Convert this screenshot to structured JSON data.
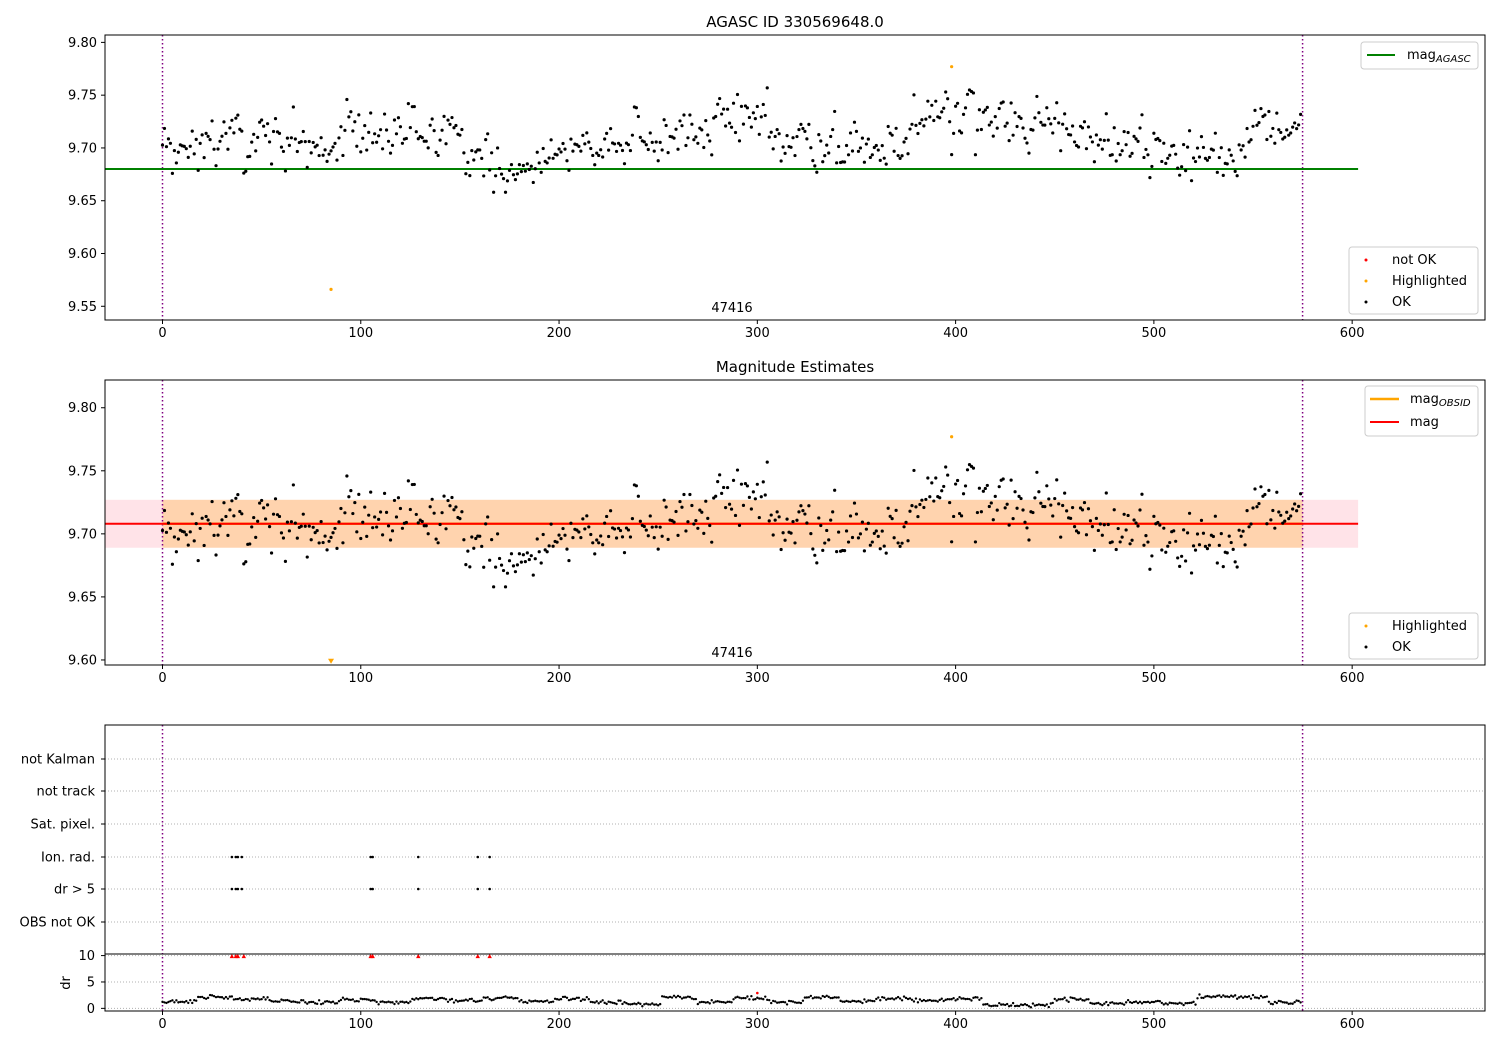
{
  "chart_data": [
    {
      "type": "scatter",
      "title": "AGASC ID 330569648.0",
      "xlim": [
        -29,
        667
      ],
      "ylim": [
        9.537,
        9.807
      ],
      "yticks": [
        "9.80",
        "9.75",
        "9.70",
        "9.65",
        "9.60",
        "9.55"
      ],
      "ytick_values": [
        9.8,
        9.75,
        9.7,
        9.65,
        9.6,
        9.55
      ],
      "xticks": [
        "0",
        "100",
        "200",
        "300",
        "400",
        "500",
        "600"
      ],
      "xtick_values": [
        0,
        100,
        200,
        300,
        400,
        500,
        600
      ],
      "obsid_label": "47416",
      "obsid_bounds": [
        0,
        575
      ],
      "mag_agasc": 9.68,
      "mag_line_range": [
        -29,
        603
      ],
      "series_ok_color": "#000000",
      "highlighted": [
        {
          "x": 85,
          "y": 9.566
        },
        {
          "x": 398,
          "y": 9.777
        }
      ],
      "highlighted_color": "#ffa500",
      "legend_top": {
        "label": "mag",
        "sub": "AGASC",
        "color": "#008000"
      },
      "legend_bottom": [
        {
          "label": "not OK",
          "color": "#ff0000"
        },
        {
          "label": "Highlighted",
          "color": "#ffa500"
        },
        {
          "label": "OK",
          "color": "#000000"
        }
      ]
    },
    {
      "type": "scatter",
      "title": "Magnitude Estimates",
      "xlim": [
        -29,
        667
      ],
      "ylim": [
        9.596,
        9.822
      ],
      "yticks": [
        "9.80",
        "9.75",
        "9.70",
        "9.65",
        "9.60"
      ],
      "ytick_values": [
        9.8,
        9.75,
        9.7,
        9.65,
        9.6
      ],
      "xticks": [
        "0",
        "100",
        "200",
        "300",
        "400",
        "500",
        "600"
      ],
      "xtick_values": [
        0,
        100,
        200,
        300,
        400,
        500,
        600
      ],
      "obsid_label": "47416",
      "obsid_bounds": [
        0,
        575
      ],
      "mag": 9.708,
      "mag_band": [
        9.689,
        9.727
      ],
      "mag_obsid": 9.708,
      "mag_obsid_band": [
        9.689,
        9.727
      ],
      "obsid_band_range": [
        0,
        575
      ],
      "mag_line_range": [
        -29,
        603
      ],
      "highlighted": [
        {
          "x": 398,
          "y": 9.777
        }
      ],
      "offscale_marker": {
        "x": 85,
        "y": 9.599
      },
      "highlighted_color": "#ffa500",
      "mag_color": "#ff0000",
      "mag_obsid_color": "#ffa500",
      "legend_top": [
        {
          "label": "mag",
          "sub": "OBSID",
          "color": "#ffa500"
        },
        {
          "label": "mag",
          "sub": "",
          "color": "#ff0000"
        }
      ],
      "legend_bottom": [
        {
          "label": "Highlighted",
          "color": "#ffa500"
        },
        {
          "label": "OK",
          "color": "#000000"
        }
      ]
    },
    {
      "type": "scatter",
      "title": "",
      "xlim": [
        -29,
        667
      ],
      "flag_rows": [
        "not Kalman",
        "not track",
        "Sat. pixel.",
        "Ion. rad.",
        "dr > 5",
        "OBS not OK"
      ],
      "flag_points": {
        "Ion. rad.": [
          35,
          37,
          38,
          40,
          105,
          106,
          129,
          159,
          165
        ],
        "dr > 5": [
          35,
          37,
          38,
          40,
          105,
          106,
          129,
          159,
          165
        ]
      },
      "dr_ylabel": "dr",
      "dr_yticks": [
        "10",
        "5",
        "0"
      ],
      "dr_ytick_values": [
        10,
        5,
        0
      ],
      "dr_ylim": [
        -0.5,
        10.3
      ],
      "dr_clip_markers": [
        35,
        37,
        38,
        41,
        105,
        106,
        129,
        159,
        165
      ],
      "dr_notok_point": {
        "x": 300,
        "y": 2.9
      },
      "xticks": [
        "0",
        "100",
        "200",
        "300",
        "400",
        "500",
        "600"
      ],
      "xtick_values": [
        0,
        100,
        200,
        300,
        400,
        500,
        600
      ],
      "obsid_bounds": [
        0,
        575
      ]
    }
  ]
}
